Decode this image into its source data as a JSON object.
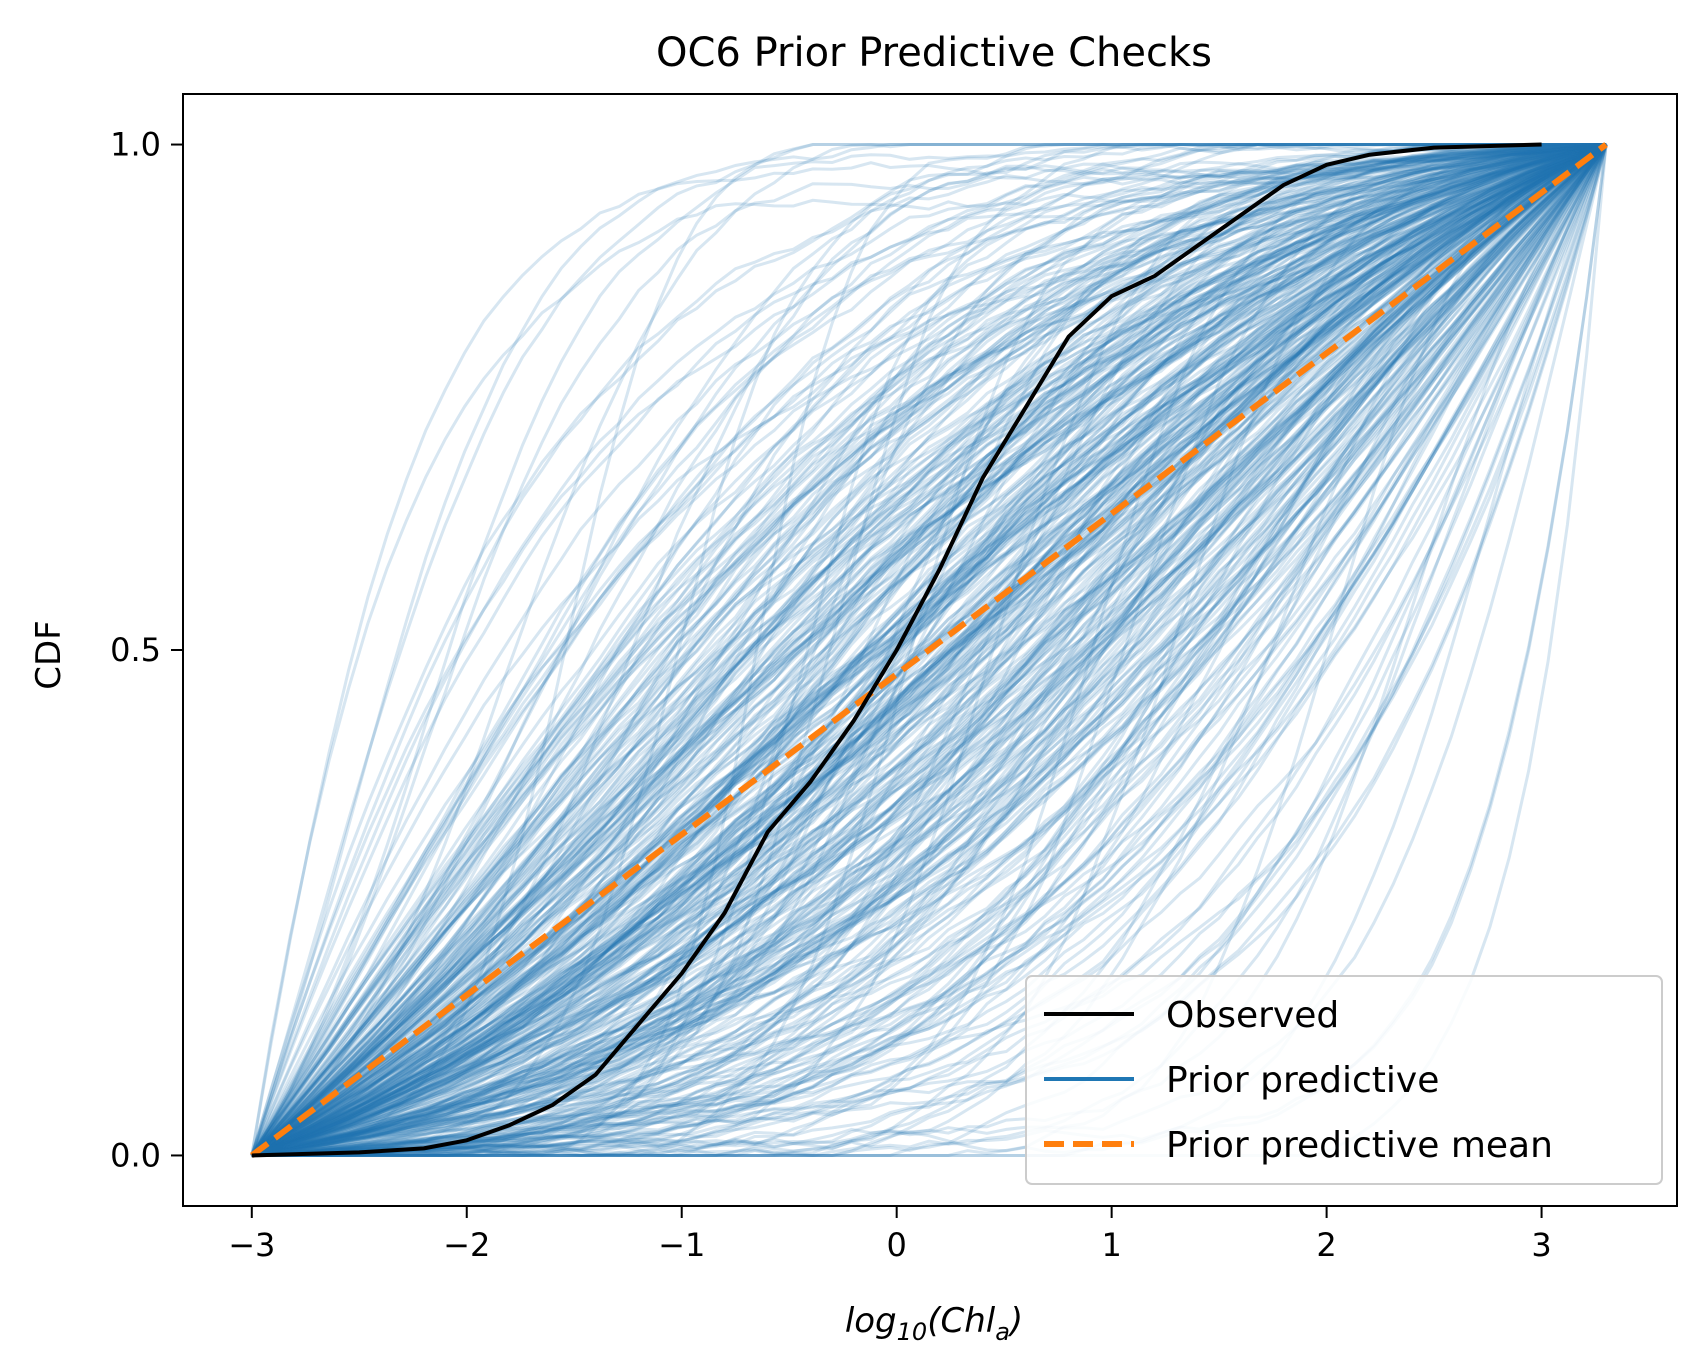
{
  "chart_data": {
    "type": "line",
    "title": "OC6 Prior Predictive Checks",
    "xlabel": "log10(Chla)",
    "ylabel": "CDF",
    "xlim": [
      -3.32,
      3.63
    ],
    "ylim": [
      -0.05,
      1.05
    ],
    "x_ticks": [
      -3,
      -2,
      -1,
      0,
      1,
      2,
      3
    ],
    "x_tick_labels": [
      "−3",
      "−2",
      "−1",
      "0",
      "1",
      "2",
      "3"
    ],
    "y_ticks": [
      0.0,
      0.5,
      1.0
    ],
    "y_tick_labels": [
      "0.0",
      "0.5",
      "1.0"
    ],
    "grid": false,
    "legend_location": "lower-right",
    "legend": [
      {
        "label": "Observed",
        "color": "#000000",
        "style": "solid"
      },
      {
        "label": "Prior predictive",
        "color": "#1f77b4",
        "style": "solid"
      },
      {
        "label": "Prior predictive mean",
        "color": "#ff7f0e",
        "style": "dashed"
      }
    ],
    "series": [
      {
        "name": "Observed",
        "color": "#000000",
        "x": [
          -3.0,
          -2.5,
          -2.2,
          -2.0,
          -1.8,
          -1.6,
          -1.4,
          -1.2,
          -1.0,
          -0.8,
          -0.6,
          -0.4,
          -0.2,
          0.0,
          0.2,
          0.4,
          0.6,
          0.8,
          1.0,
          1.2,
          1.4,
          1.6,
          1.8,
          2.0,
          2.2,
          2.5,
          3.0
        ],
        "y": [
          0.0,
          0.003,
          0.007,
          0.015,
          0.03,
          0.05,
          0.08,
          0.13,
          0.18,
          0.24,
          0.32,
          0.37,
          0.43,
          0.5,
          0.58,
          0.67,
          0.74,
          0.81,
          0.85,
          0.87,
          0.9,
          0.93,
          0.96,
          0.98,
          0.99,
          0.997,
          1.0
        ]
      },
      {
        "name": "Prior predictive mean",
        "color": "#ff7f0e",
        "x": [
          -3.0,
          3.3
        ],
        "y": [
          0.0,
          1.0
        ]
      }
    ],
    "prior_predictive": {
      "name": "Prior predictive",
      "color": "#1f77b4",
      "alpha": 0.18,
      "n_samples": 400,
      "x_range": [
        -3.0,
        3.3
      ]
    }
  }
}
